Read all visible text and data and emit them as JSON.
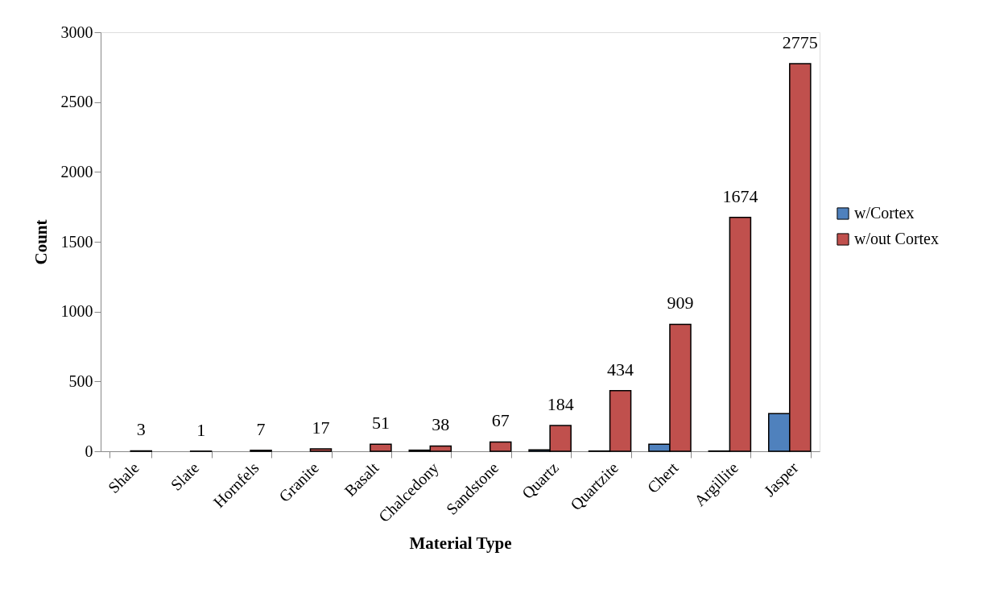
{
  "chart_data": {
    "type": "bar",
    "xlabel": "Material Type",
    "ylabel": "Count",
    "categories": [
      "Shale",
      "Slate",
      "Hornfels",
      "Granite",
      "Basalt",
      "Chalcedony",
      "Sandstone",
      "Quartz",
      "Quartzite",
      "Chert",
      "Argillite",
      "Jasper"
    ],
    "series": [
      {
        "name": "w/Cortex",
        "color": "#4f81bd",
        "values": [
          null,
          null,
          null,
          null,
          null,
          8,
          null,
          10,
          2,
          50,
          2,
          270
        ]
      },
      {
        "name": "w/out Cortex",
        "color": "#c0504d",
        "values": [
          3,
          1,
          7,
          17,
          51,
          38,
          67,
          184,
          434,
          909,
          1674,
          2775
        ],
        "value_labels": [
          "3",
          "1",
          "7",
          "17",
          "51",
          "38",
          "67",
          "184",
          "434",
          "909",
          "1674",
          "2775"
        ]
      }
    ],
    "ylim": [
      0,
      3000
    ],
    "yticks": [
      0,
      500,
      1000,
      1500,
      2000,
      2500,
      3000
    ],
    "grid": false,
    "legend": "right"
  }
}
